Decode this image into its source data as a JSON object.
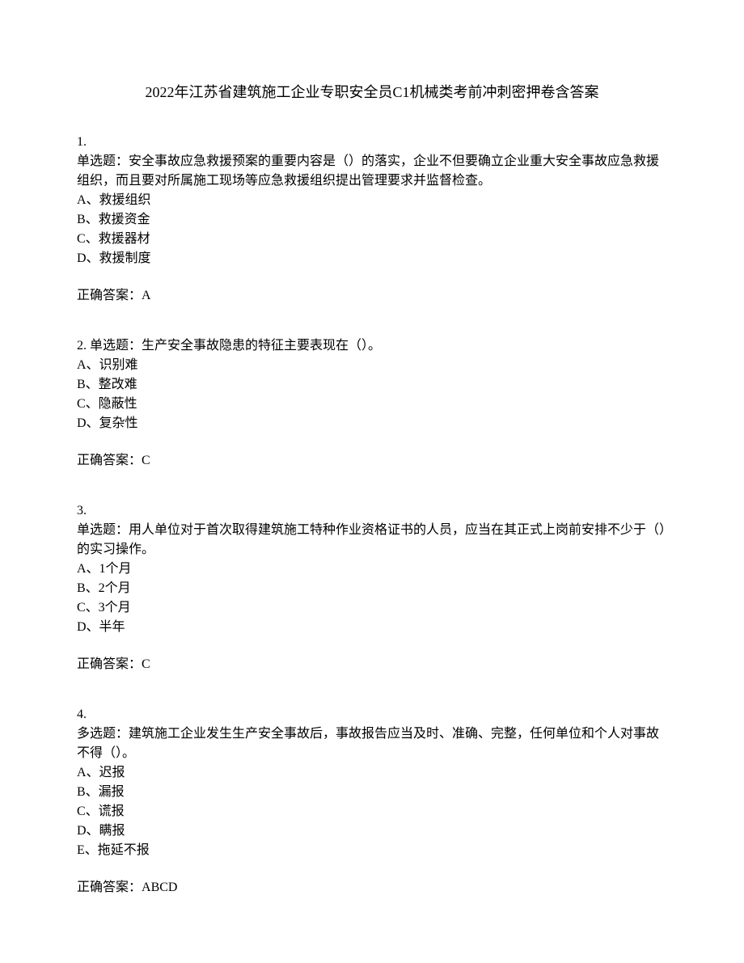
{
  "title": "2022年江苏省建筑施工企业专职安全员C1机械类考前冲刺密押卷含答案",
  "questions": [
    {
      "number": "1.",
      "inline": false,
      "type_label": "单选题：",
      "stem": "安全事故应急救援预案的重要内容是（）的落实，企业不但要确立企业重大安全事故应急救援组织，而且要对所属施工现场等应急救援组织提出管理要求并监督检查。",
      "options": [
        "A、救援组织",
        "B、救援资金",
        "C、救援器材",
        "D、救援制度"
      ],
      "answer_label": "正确答案：",
      "answer": "A"
    },
    {
      "number": "2. ",
      "inline": true,
      "type_label": "单选题：",
      "stem": "生产安全事故隐患的特征主要表现在（）。",
      "options": [
        "A、识别难",
        "B、整改难",
        "C、隐蔽性",
        "D、复杂性"
      ],
      "answer_label": "正确答案：",
      "answer": "C"
    },
    {
      "number": "3.",
      "inline": false,
      "type_label": "单选题：",
      "stem": "用人单位对于首次取得建筑施工特种作业资格证书的人员，应当在其正式上岗前安排不少于（）的实习操作。",
      "options": [
        "A、1个月",
        "B、2个月",
        "C、3个月",
        "D、半年"
      ],
      "answer_label": "正确答案：",
      "answer": "C"
    },
    {
      "number": "4.",
      "inline": false,
      "type_label": "多选题：",
      "stem": "建筑施工企业发生生产安全事故后，事故报告应当及时、准确、完整，任何单位和个人对事故不得（）。",
      "options": [
        "A、迟报",
        "B、漏报",
        "C、谎报",
        "D、瞒报",
        "E、拖延不报"
      ],
      "answer_label": "正确答案：",
      "answer": "ABCD"
    }
  ]
}
